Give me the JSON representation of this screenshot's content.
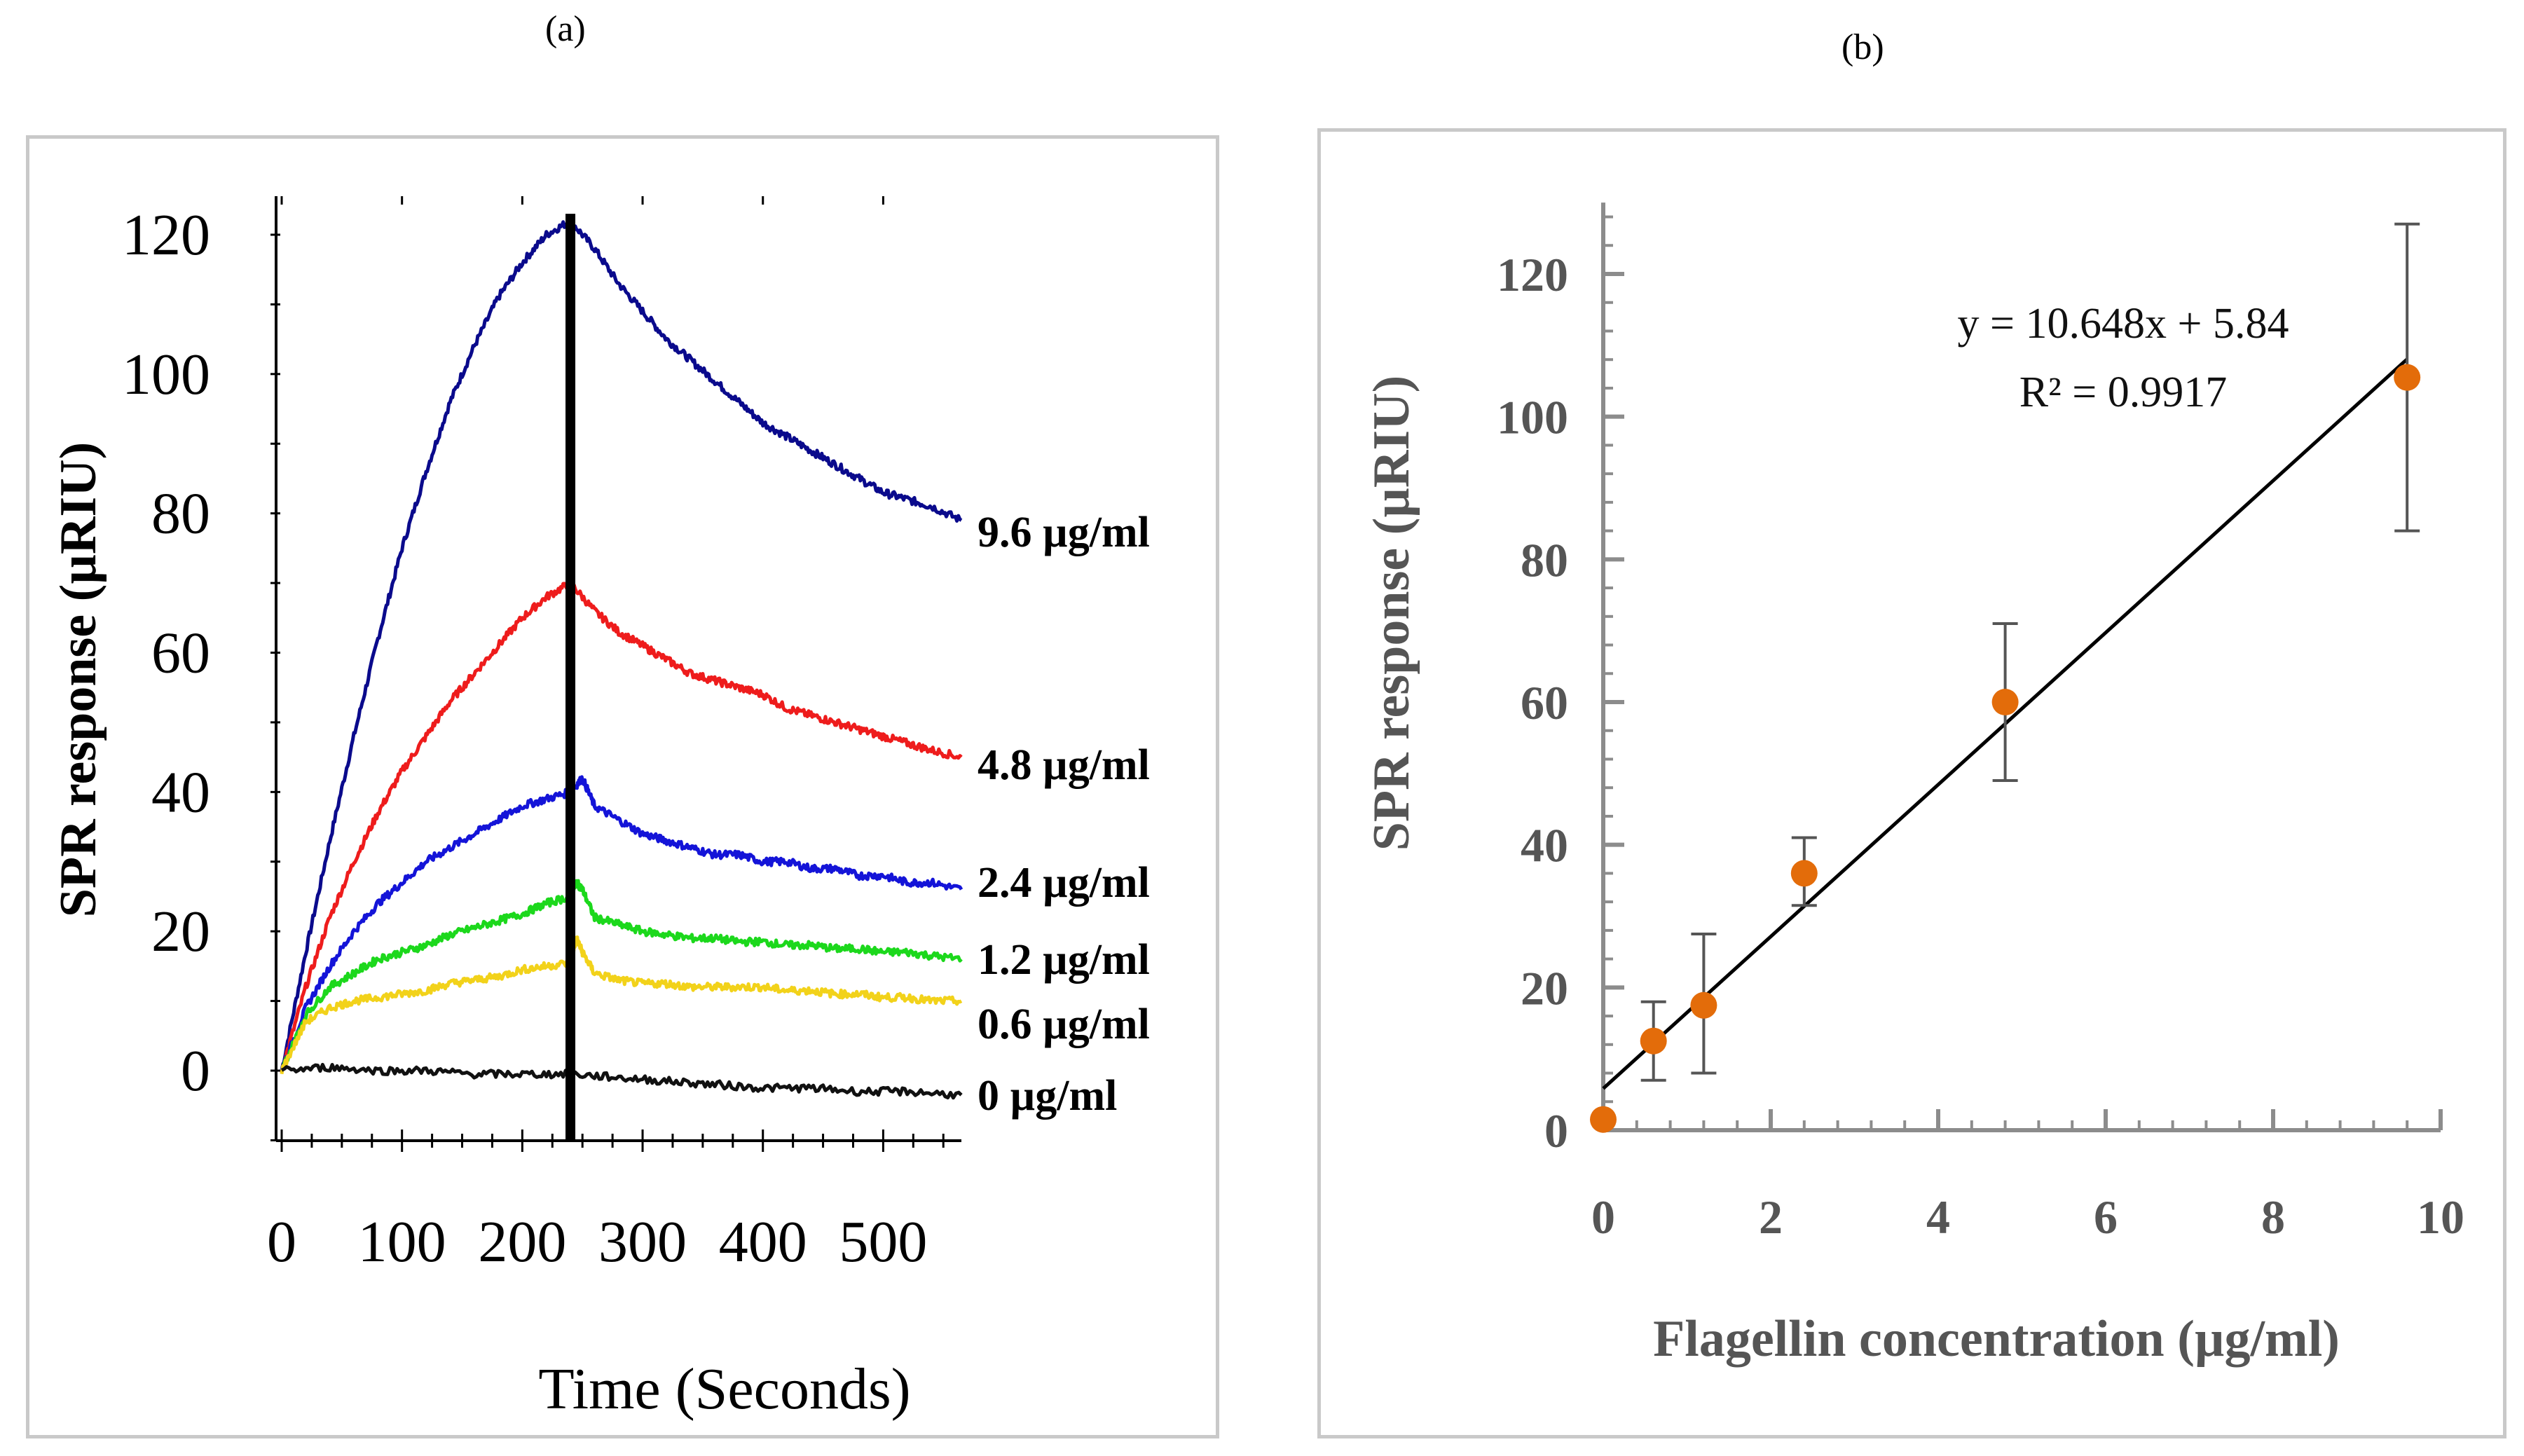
{
  "figure": {
    "panel_a_label": "(a)",
    "panel_b_label": "(b)"
  },
  "chart_data": [
    {
      "panel": "a",
      "type": "line",
      "title": "",
      "xlabel": "Time (Seconds)",
      "ylabel": "SPR response (µRIU)",
      "xlim": [
        0,
        565
      ],
      "ylim": [
        -10,
        125
      ],
      "xticks": [
        0,
        100,
        200,
        300,
        400,
        500
      ],
      "yticks": [
        0,
        20,
        40,
        60,
        80,
        100,
        120
      ],
      "injection_end_time": 240,
      "series": [
        {
          "name": "9.6 µg/ml",
          "label": "9.6 µg/ml",
          "color": "#0a0a8c",
          "t": [
            0,
            20,
            40,
            60,
            80,
            100,
            120,
            140,
            160,
            180,
            200,
            220,
            240,
            260,
            280,
            300,
            320,
            340,
            360,
            380,
            400,
            420,
            440,
            460,
            480,
            500,
            520,
            540,
            565
          ],
          "y": [
            0,
            17,
            33,
            48,
            62,
            75,
            86,
            96,
            104,
            111,
            116,
            120,
            122,
            118,
            113,
            109,
            105,
            102,
            99,
            96,
            93,
            91,
            89,
            87,
            85,
            83,
            82,
            81,
            79
          ]
        },
        {
          "name": "4.8 µg/ml",
          "label": "4.8 µg/ml",
          "color": "#ee1c1c",
          "t": [
            0,
            20,
            40,
            60,
            80,
            100,
            120,
            140,
            160,
            180,
            200,
            220,
            240,
            260,
            280,
            300,
            320,
            340,
            360,
            380,
            400,
            420,
            440,
            460,
            480,
            500,
            520,
            540,
            565
          ],
          "y": [
            0,
            12,
            22,
            30,
            37,
            43,
            48,
            53,
            57,
            61,
            65,
            68,
            70,
            66,
            63,
            61,
            59,
            57,
            56,
            55,
            54,
            52,
            51,
            50,
            49,
            48,
            47,
            46,
            45
          ]
        },
        {
          "name": "2.4 µg/ml",
          "label": "2.4 µg/ml",
          "color": "#1414d8",
          "t": [
            0,
            20,
            40,
            60,
            80,
            100,
            120,
            140,
            160,
            180,
            200,
            220,
            240,
            250,
            260,
            280,
            300,
            320,
            340,
            360,
            380,
            400,
            420,
            440,
            460,
            480,
            500,
            520,
            540,
            565
          ],
          "y": [
            0,
            9,
            15,
            20,
            24,
            27,
            30,
            32,
            34,
            36,
            38,
            39,
            40,
            42,
            38,
            36,
            34,
            33,
            32,
            31,
            31,
            30,
            30,
            29,
            29,
            28,
            28,
            27,
            27,
            26
          ]
        },
        {
          "name": "1.2 µg/ml",
          "label": "1.2 µg/ml",
          "color": "#1cd81c",
          "t": [
            0,
            20,
            40,
            60,
            80,
            100,
            120,
            140,
            160,
            180,
            200,
            220,
            240,
            245,
            250,
            260,
            280,
            300,
            320,
            340,
            360,
            380,
            400,
            420,
            440,
            460,
            480,
            500,
            520,
            540,
            565
          ],
          "y": [
            0,
            8,
            12,
            14,
            16,
            17,
            18,
            19.5,
            20.5,
            21.5,
            22.5,
            24,
            25,
            27,
            26,
            22,
            21,
            20,
            19.5,
            19,
            19,
            18.5,
            18.5,
            18,
            18,
            17.5,
            17.5,
            17,
            17,
            16.5,
            16
          ]
        },
        {
          "name": "0.6 µg/ml",
          "label": "0.6 µg/ml",
          "color": "#f2d21a",
          "t": [
            0,
            20,
            40,
            60,
            80,
            100,
            120,
            140,
            160,
            180,
            200,
            220,
            240,
            245,
            250,
            260,
            280,
            300,
            320,
            340,
            360,
            380,
            400,
            420,
            440,
            460,
            480,
            500,
            520,
            540,
            565
          ],
          "y": [
            0,
            7,
            9,
            10,
            10.5,
            11,
            11.5,
            12.5,
            13,
            13.5,
            14.5,
            15,
            15.5,
            19,
            17,
            14,
            13,
            12.5,
            12.5,
            12,
            12,
            12,
            12,
            11.5,
            11.5,
            11,
            11,
            10.5,
            10.5,
            10,
            10
          ]
        },
        {
          "name": "0 µg/ml",
          "label": "0 µg/ml",
          "color": "#111111",
          "t": [
            0,
            40,
            80,
            120,
            160,
            200,
            240,
            280,
            320,
            360,
            400,
            440,
            480,
            520,
            565
          ],
          "y": [
            0,
            0.5,
            0,
            0,
            -0.5,
            -0.5,
            -0.5,
            -1,
            -1.5,
            -2,
            -2.5,
            -2.5,
            -3,
            -3,
            -3.5
          ]
        }
      ]
    },
    {
      "panel": "b",
      "type": "scatter",
      "title": "",
      "xlabel": "Flagellin concentration (µg/ml)",
      "ylabel": "SPR response (µRIU)",
      "xlim": [
        0,
        10
      ],
      "ylim": [
        0,
        130
      ],
      "xticks": [
        0,
        2,
        4,
        6,
        8,
        10
      ],
      "yticks": [
        0,
        20,
        40,
        60,
        80,
        100,
        120
      ],
      "point_color": "#e36c0a",
      "x": [
        0,
        0.6,
        1.2,
        2.4,
        4.8,
        9.6
      ],
      "y": [
        1.5,
        12.5,
        17.5,
        36,
        60,
        105.5
      ],
      "err_low": [
        0,
        7,
        8,
        31.5,
        49,
        84
      ],
      "err_high": [
        0,
        18,
        27.5,
        41,
        71,
        127
      ],
      "trendline": {
        "slope": 10.648,
        "intercept": 5.84,
        "x_range": [
          0,
          9.6
        ]
      },
      "annotation_equation": "y = 10.648x + 5.84",
      "annotation_r2": "R² = 0.9917"
    }
  ]
}
